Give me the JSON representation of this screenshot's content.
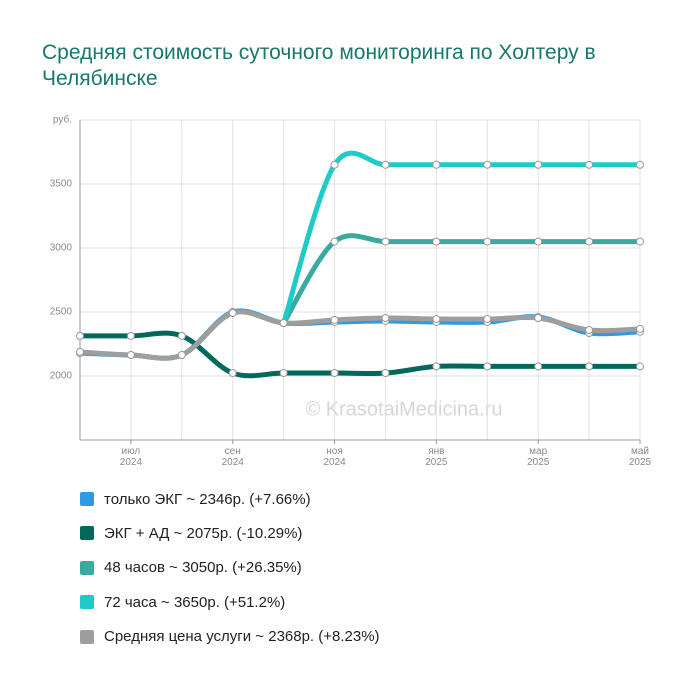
{
  "chart_data": {
    "type": "line",
    "title": "Средняя стоимость суточного мониторинга по Холтеру в Челябинске",
    "y_label": "руб.",
    "watermark": "© KrasotaiMedicina.ru",
    "categories": [
      null,
      "июл 2024",
      null,
      "сен 2024",
      null,
      "ноя 2024",
      null,
      "янв 2025",
      null,
      "мар 2025",
      null,
      "май 2025"
    ],
    "ylim": [
      1500,
      4000
    ],
    "yticks": [
      2000,
      2500,
      3000,
      3500
    ],
    "grid": true,
    "series": [
      {
        "name": "только ЭКГ ~ 2346р. (+7.66%)",
        "color": "#2d9be3",
        "values": [
          2179,
          2164,
          2164,
          2500,
          2414,
          2422,
          2430,
          2422,
          2422,
          2461,
          2336,
          2346
        ]
      },
      {
        "name": "ЭКГ + АД ~ 2075р. (-10.29%)",
        "color": "#00695c",
        "values": [
          2313,
          2313,
          2313,
          2023,
          2023,
          2023,
          2023,
          2075,
          2075,
          2075,
          2075,
          2075
        ]
      },
      {
        "name": "48 часов ~ 3050р. (+26.35%)",
        "color": "#3aa99f",
        "values": [
          null,
          null,
          null,
          null,
          2414,
          3050,
          3050,
          3050,
          3050,
          3050,
          3050,
          3050
        ]
      },
      {
        "name": "72 часа ~ 3650р. (+51.2%)",
        "color": "#1fcbc8",
        "values": [
          null,
          null,
          null,
          null,
          2414,
          3650,
          3650,
          3650,
          3650,
          3650,
          3650,
          3650
        ]
      },
      {
        "name": "Средняя цена услуги ~ 2368р. (+8.23%)",
        "color": "#9e9e9e",
        "values": [
          2188,
          2164,
          2164,
          2492,
          2414,
          2438,
          2453,
          2445,
          2445,
          2453,
          2359,
          2368
        ]
      }
    ]
  }
}
